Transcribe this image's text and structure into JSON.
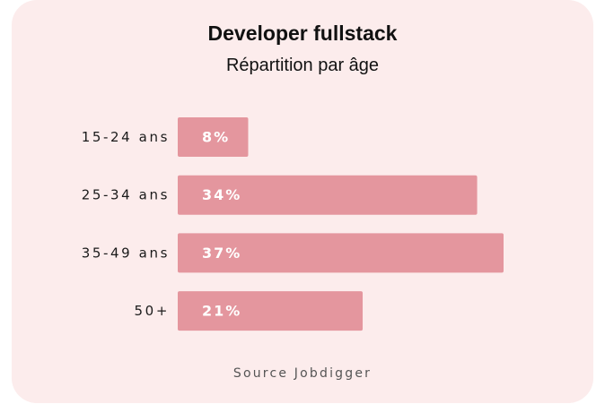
{
  "colors": {
    "card_background": "#fcecec",
    "bar": "#e4969e",
    "bar_label": "#ffffff",
    "text": "#111111"
  },
  "chart_data": {
    "type": "bar",
    "orientation": "horizontal",
    "title": "Developer fullstack",
    "subtitle": "Répartition par âge",
    "categories": [
      "15-24 ans",
      "25-34 ans",
      "35-49 ans",
      "50+"
    ],
    "values": [
      8,
      34,
      37,
      21
    ],
    "value_labels": [
      "8%",
      "34%",
      "37%",
      "21%"
    ],
    "unit": "%",
    "xlim": [
      0,
      37
    ],
    "grid": false,
    "legend": "none"
  },
  "footer": {
    "source": "Source Jobdigger"
  }
}
